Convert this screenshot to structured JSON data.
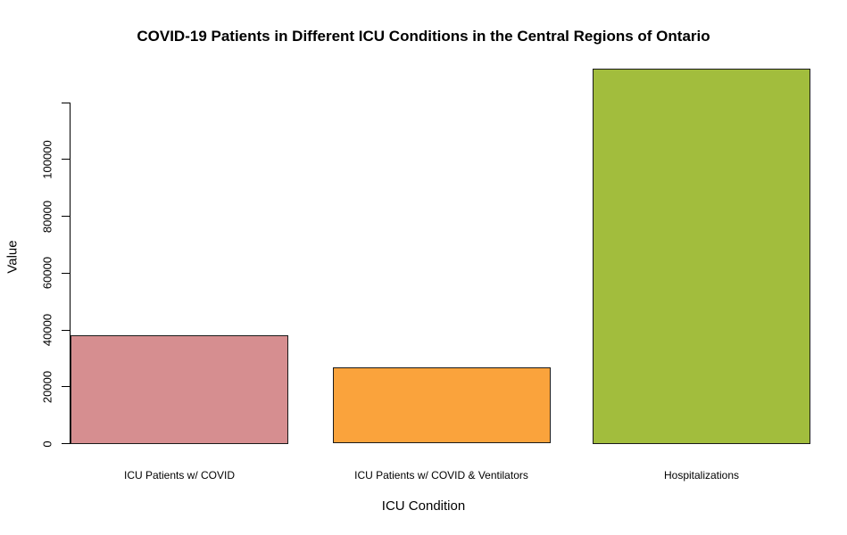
{
  "chart_data": {
    "type": "bar",
    "title": "COVID-19 Patients in Different ICU Conditions in the Central Regions of Ontario",
    "xlabel": "ICU Condition",
    "ylabel": "Value",
    "categories": [
      "ICU Patients w/ COVID",
      "ICU Patients w/ COVID & Ventilators",
      "Hospitalizations"
    ],
    "values": [
      38000,
      26700,
      132000
    ],
    "bar_colors": [
      "#d68e90",
      "#faa33c",
      "#a2bd3d"
    ],
    "bar_border_color": "#1a1a1a",
    "ylim": [
      0,
      120000
    ],
    "yticks": [
      0,
      20000,
      40000,
      60000,
      80000,
      100000,
      120000
    ],
    "ytick_labels": [
      "0",
      "20000",
      "40000",
      "60000",
      "80000",
      "100000",
      ""
    ],
    "grid": false,
    "legend_position": "none",
    "background_color": "#ffffff",
    "text_color": "#000000"
  }
}
